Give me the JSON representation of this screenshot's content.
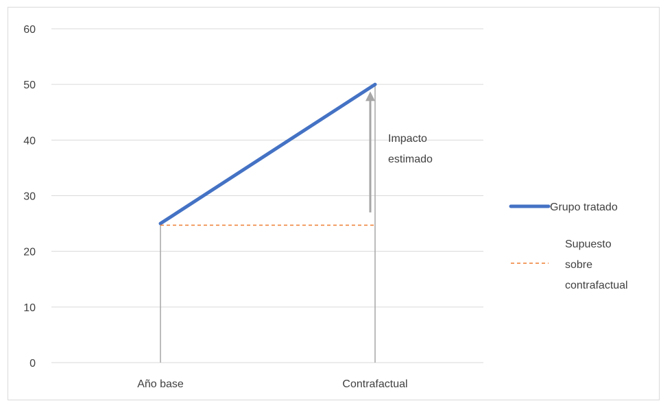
{
  "chart_data": {
    "type": "line",
    "title": "",
    "xlabel": "",
    "ylabel": "",
    "categories": [
      "Año base",
      "Contrafactual"
    ],
    "ylim": [
      0,
      60
    ],
    "yticks": [
      "0",
      "10",
      "20",
      "30",
      "40",
      "50",
      "60"
    ],
    "grid": true,
    "legend_position": "right",
    "series": [
      {
        "name": "Grupo tratado",
        "values": [
          25,
          50
        ],
        "color": "#4472c4",
        "style": "solid"
      },
      {
        "name": "Supuesto sobre contrafactual",
        "values": [
          24.7,
          24.7
        ],
        "color": "#ed7d31",
        "style": "dashed"
      }
    ],
    "legend": [
      {
        "label_lines": [
          "Grupo tratado"
        ],
        "color": "#4472c4",
        "style": "solid"
      },
      {
        "label_lines": [
          "Supuesto",
          "sobre",
          "contrafactual"
        ],
        "color": "#ed7d31",
        "style": "dashed"
      }
    ],
    "annotation": {
      "lines": [
        "Impacto",
        "estimado"
      ],
      "arrow_from": 27,
      "arrow_to": 48.5,
      "arrow_color": "#a6a6a6"
    },
    "drop_lines_color": "#a6a6a6"
  }
}
